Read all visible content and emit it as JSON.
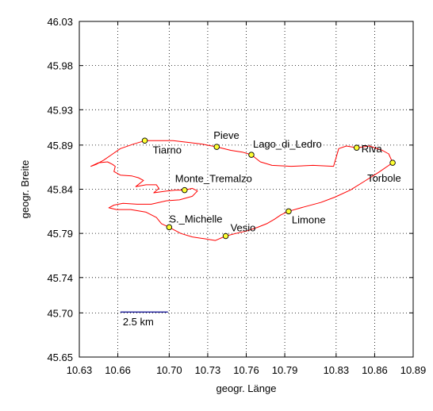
{
  "chart_data": {
    "type": "scatter",
    "title": "",
    "xlabel": "geogr. Länge",
    "ylabel": "geogr. Breite",
    "xlim": [
      10.63,
      10.89
    ],
    "ylim": [
      45.65,
      46.03
    ],
    "xticks": [
      10.63,
      10.66,
      10.7,
      10.73,
      10.76,
      10.79,
      10.83,
      10.86,
      10.89
    ],
    "xtick_labels": [
      "10.63",
      "10.66",
      "10.70",
      "10.73",
      "10.76",
      "10.79",
      "10.83",
      "10.86",
      "10.89"
    ],
    "yticks": [
      45.65,
      45.7,
      45.74,
      45.79,
      45.84,
      45.89,
      45.93,
      45.98,
      46.03
    ],
    "ytick_labels": [
      "45.65",
      "45.70",
      "45.74",
      "45.79",
      "45.84",
      "45.89",
      "45.93",
      "45.98",
      "46.03"
    ],
    "grid": true,
    "colors": {
      "track": "#ff0000",
      "marker_fill": "#ffff33",
      "marker_edge": "#000000",
      "scale_bar": "#00008b"
    },
    "points": [
      {
        "name": "Tiarno",
        "x": 10.681,
        "y": 45.895
      },
      {
        "name": "Pieve",
        "x": 10.737,
        "y": 45.888
      },
      {
        "name": "Lago_di_Ledro",
        "x": 10.764,
        "y": 45.879
      },
      {
        "name": "Riva",
        "x": 10.846,
        "y": 45.887
      },
      {
        "name": "Torbole",
        "x": 10.874,
        "y": 45.87
      },
      {
        "name": "Monte_Tremalzo",
        "x": 10.712,
        "y": 45.839
      },
      {
        "name": "S._Michelle",
        "x": 10.7,
        "y": 45.797
      },
      {
        "name": "Vesio",
        "x": 10.744,
        "y": 45.787
      },
      {
        "name": "Limone",
        "x": 10.793,
        "y": 45.815
      }
    ],
    "track": [
      [
        10.681,
        45.895
      ],
      [
        10.672,
        45.891
      ],
      [
        10.662,
        45.886
      ],
      [
        10.655,
        45.879
      ],
      [
        10.649,
        45.873
      ],
      [
        10.643,
        45.868
      ],
      [
        10.639,
        45.866
      ],
      [
        10.645,
        45.87
      ],
      [
        10.652,
        45.871
      ],
      [
        10.656,
        45.868
      ],
      [
        10.658,
        45.866
      ],
      [
        10.657,
        45.86
      ],
      [
        10.662,
        45.856
      ],
      [
        10.671,
        45.855
      ],
      [
        10.676,
        45.853
      ],
      [
        10.68,
        45.85
      ],
      [
        10.674,
        45.843
      ],
      [
        10.682,
        45.845
      ],
      [
        10.69,
        45.845
      ],
      [
        10.692,
        45.841
      ],
      [
        10.688,
        45.836
      ],
      [
        10.698,
        45.838
      ],
      [
        10.705,
        45.839
      ],
      [
        10.712,
        45.839
      ],
      [
        10.718,
        45.841
      ],
      [
        10.722,
        45.838
      ],
      [
        10.718,
        45.832
      ],
      [
        10.708,
        45.828
      ],
      [
        10.698,
        45.827
      ],
      [
        10.686,
        45.823
      ],
      [
        10.675,
        45.823
      ],
      [
        10.664,
        45.824
      ],
      [
        10.657,
        45.822
      ],
      [
        10.653,
        45.819
      ],
      [
        10.659,
        45.817
      ],
      [
        10.67,
        45.817
      ],
      [
        10.682,
        45.814
      ],
      [
        10.69,
        45.808
      ],
      [
        10.694,
        45.801
      ],
      [
        10.7,
        45.797
      ],
      [
        10.709,
        45.79
      ],
      [
        10.718,
        45.786
      ],
      [
        10.727,
        45.784
      ],
      [
        10.736,
        45.782
      ],
      [
        10.744,
        45.787
      ],
      [
        10.752,
        45.79
      ],
      [
        10.761,
        45.793
      ],
      [
        10.769,
        45.797
      ],
      [
        10.776,
        45.801
      ],
      [
        10.782,
        45.806
      ],
      [
        10.787,
        45.811
      ],
      [
        10.793,
        45.815
      ],
      [
        10.805,
        45.82
      ],
      [
        10.818,
        45.825
      ],
      [
        10.829,
        45.831
      ],
      [
        10.841,
        45.839
      ],
      [
        10.852,
        45.849
      ],
      [
        10.863,
        45.859
      ],
      [
        10.874,
        45.87
      ],
      [
        10.871,
        45.88
      ],
      [
        10.866,
        45.884
      ],
      [
        10.856,
        45.889
      ],
      [
        10.846,
        45.887
      ],
      [
        10.838,
        45.889
      ],
      [
        10.832,
        45.886
      ],
      [
        10.828,
        45.866
      ],
      [
        10.812,
        45.867
      ],
      [
        10.795,
        45.866
      ],
      [
        10.78,
        45.867
      ],
      [
        10.771,
        45.871
      ],
      [
        10.764,
        45.879
      ],
      [
        10.757,
        45.882
      ],
      [
        10.748,
        45.884
      ],
      [
        10.737,
        45.888
      ],
      [
        10.726,
        45.891
      ],
      [
        10.715,
        45.893
      ],
      [
        10.703,
        45.895
      ],
      [
        10.692,
        45.895
      ],
      [
        10.681,
        45.895
      ]
    ],
    "scale_bar": {
      "label": "2.5 km",
      "x_start": 10.662,
      "x_end": 10.699,
      "y": 45.701
    }
  }
}
